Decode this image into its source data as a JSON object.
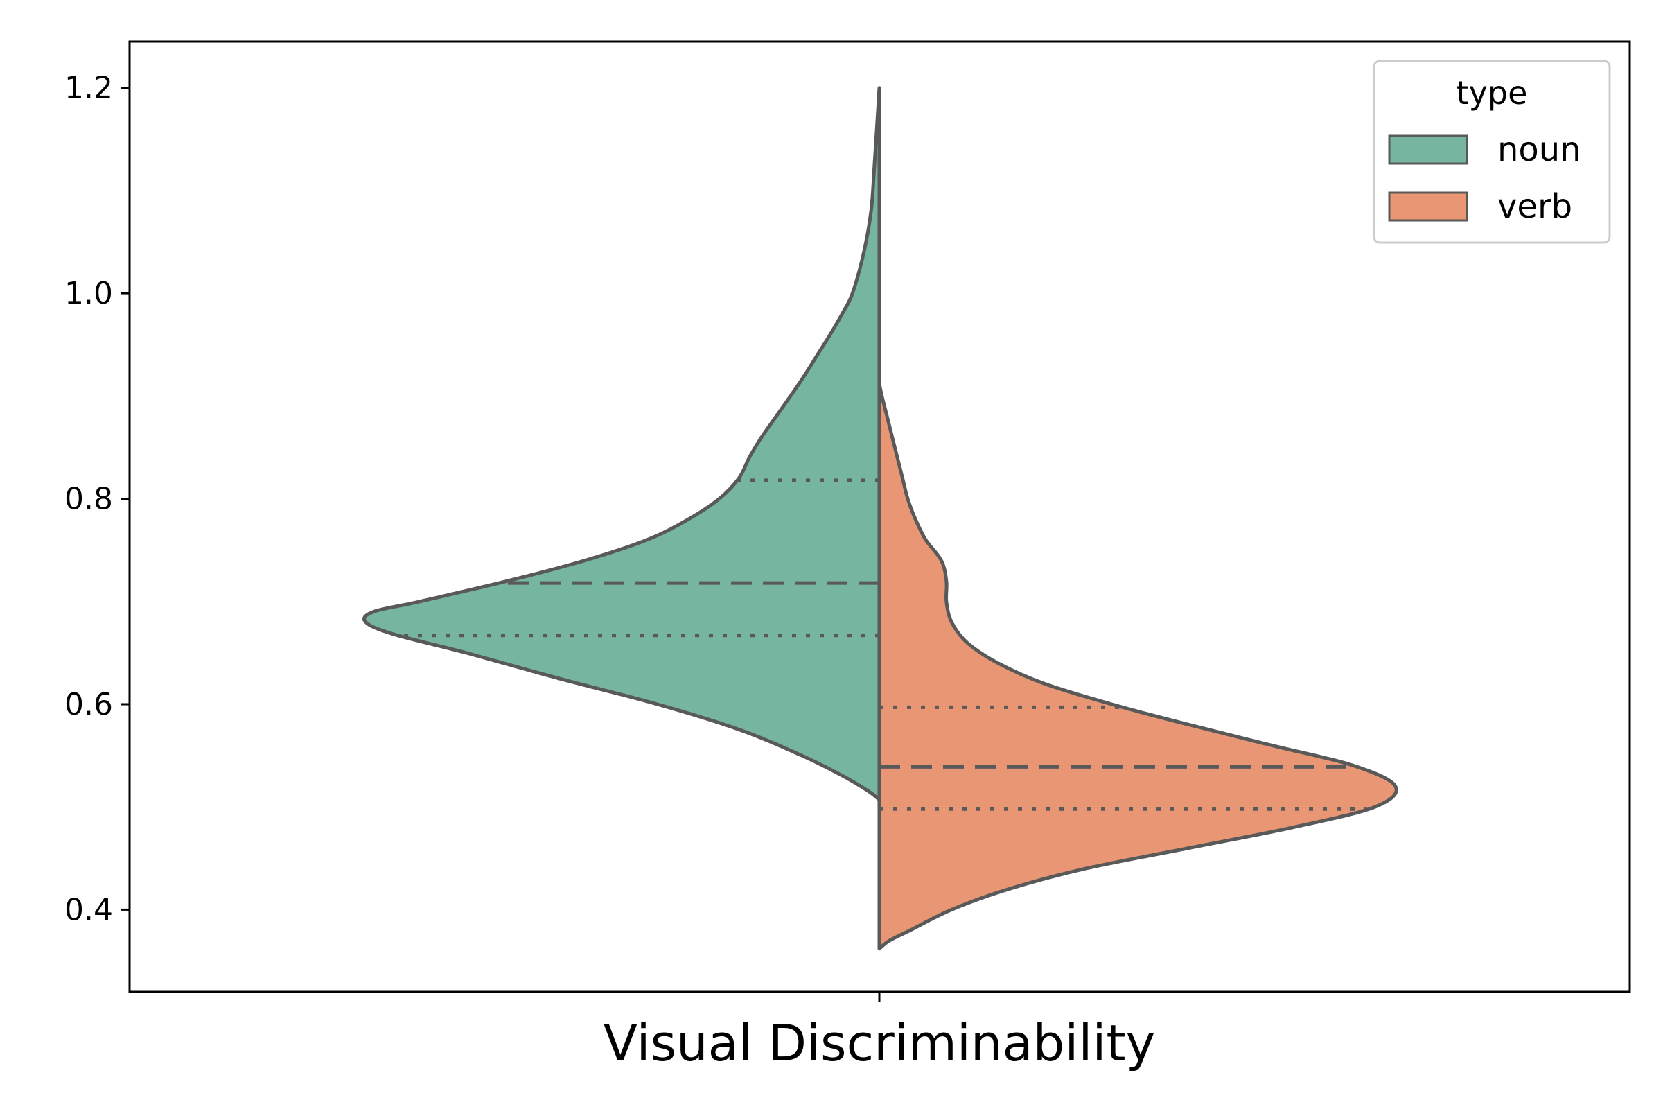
{
  "chart_data": {
    "type": "violin",
    "xlabel": "",
    "categories": [
      "Visual Discriminability"
    ],
    "ylabel": "",
    "ylim": [
      0.32,
      1.245
    ],
    "yticks": [
      0.4,
      0.6,
      0.8,
      1.0,
      1.2
    ],
    "ytick_labels": [
      "0.4",
      "0.6",
      "0.8",
      "1.0",
      "1.2"
    ],
    "grid": false,
    "legend": {
      "title": "type",
      "position": "top-right"
    },
    "series": [
      {
        "name": "noun",
        "color": "#76B5A0",
        "side": "left",
        "quartiles": {
          "q1": 0.667,
          "median": 0.718,
          "q3": 0.818
        },
        "density": [
          [
            0.507,
            0.0
          ],
          [
            0.515,
            0.02
          ],
          [
            0.53,
            0.07
          ],
          [
            0.55,
            0.15
          ],
          [
            0.575,
            0.27
          ],
          [
            0.6,
            0.43
          ],
          [
            0.625,
            0.62
          ],
          [
            0.65,
            0.8
          ],
          [
            0.668,
            0.94
          ],
          [
            0.68,
            0.995
          ],
          [
            0.69,
            0.98
          ],
          [
            0.7,
            0.89
          ],
          [
            0.72,
            0.72
          ],
          [
            0.74,
            0.57
          ],
          [
            0.76,
            0.45
          ],
          [
            0.78,
            0.37
          ],
          [
            0.8,
            0.31
          ],
          [
            0.82,
            0.272
          ],
          [
            0.84,
            0.252
          ],
          [
            0.86,
            0.228
          ],
          [
            0.88,
            0.2
          ],
          [
            0.9,
            0.172
          ],
          [
            0.92,
            0.145
          ],
          [
            0.94,
            0.12
          ],
          [
            0.96,
            0.095
          ],
          [
            0.98,
            0.072
          ],
          [
            1.0,
            0.052
          ],
          [
            1.04,
            0.03
          ],
          [
            1.08,
            0.016
          ],
          [
            1.12,
            0.01
          ],
          [
            1.16,
            0.005
          ],
          [
            1.2,
            0.0
          ]
        ]
      },
      {
        "name": "verb",
        "color": "#E89674",
        "side": "right",
        "quartiles": {
          "q1": 0.498,
          "median": 0.539,
          "q3": 0.597
        },
        "density": [
          [
            0.362,
            0.0
          ],
          [
            0.37,
            0.02
          ],
          [
            0.38,
            0.06
          ],
          [
            0.4,
            0.14
          ],
          [
            0.42,
            0.25
          ],
          [
            0.44,
            0.4
          ],
          [
            0.46,
            0.6
          ],
          [
            0.48,
            0.8
          ],
          [
            0.5,
            0.96
          ],
          [
            0.52,
            1.0
          ],
          [
            0.54,
            0.92
          ],
          [
            0.56,
            0.76
          ],
          [
            0.58,
            0.6
          ],
          [
            0.6,
            0.45
          ],
          [
            0.62,
            0.32
          ],
          [
            0.64,
            0.23
          ],
          [
            0.66,
            0.17
          ],
          [
            0.68,
            0.14
          ],
          [
            0.7,
            0.13
          ],
          [
            0.72,
            0.13
          ],
          [
            0.74,
            0.12
          ],
          [
            0.76,
            0.09
          ],
          [
            0.78,
            0.07
          ],
          [
            0.8,
            0.055
          ],
          [
            0.82,
            0.045
          ],
          [
            0.84,
            0.035
          ],
          [
            0.86,
            0.025
          ],
          [
            0.88,
            0.015
          ],
          [
            0.9,
            0.005
          ],
          [
            0.912,
            0.0
          ]
        ]
      }
    ]
  }
}
